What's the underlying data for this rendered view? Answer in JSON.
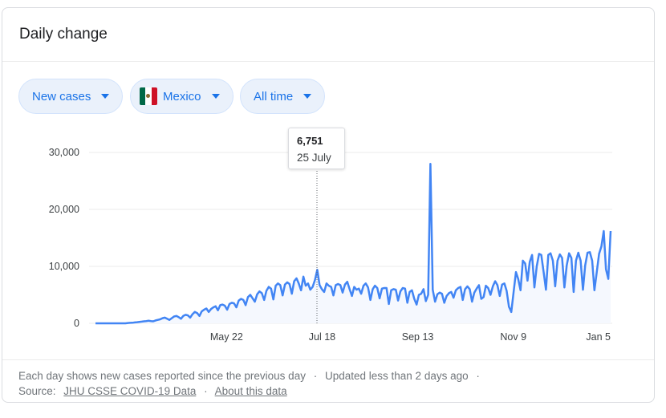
{
  "card": {
    "title": "Daily change"
  },
  "filters": {
    "metric": "New cases",
    "country": "Mexico",
    "range": "All time"
  },
  "tooltip": {
    "value": "6,751",
    "date": "25 July"
  },
  "colors": {
    "line": "#4285f4",
    "chip_text": "#1a73e8",
    "chip_bg": "#eaf1fb"
  },
  "footer": {
    "note": "Each day shows new cases reported since the previous day",
    "updated": "Updated less than 2 days ago",
    "source_label": "Source:",
    "source_link": "JHU CSSE COVID-19 Data",
    "about_link": "About this data"
  },
  "chart_data": {
    "type": "line",
    "x_start": "2020-03-01",
    "x_end": "2021-01-07",
    "x_ticks": [
      {
        "date": "2020-05-22",
        "label": "May 22"
      },
      {
        "date": "2020-07-18",
        "label": "Jul 18"
      },
      {
        "date": "2020-09-13",
        "label": "Sep 13"
      },
      {
        "date": "2020-11-09",
        "label": "Nov 9"
      },
      {
        "date": "2021-01-05",
        "label": "Jan 5"
      }
    ],
    "y_ticks": [
      {
        "value": 0,
        "label": "0"
      },
      {
        "value": 10000,
        "label": "10,000"
      },
      {
        "value": 20000,
        "label": "20,000"
      },
      {
        "value": 30000,
        "label": "30,000"
      }
    ],
    "ylim": [
      0,
      30000
    ],
    "hover": {
      "date": "2020-07-25",
      "value": 6751
    },
    "series": [
      {
        "values": [
          0,
          0,
          0,
          0,
          0,
          0,
          0,
          0,
          0,
          0,
          0,
          0,
          0,
          0,
          50,
          80,
          100,
          150,
          200,
          250,
          300,
          350,
          400,
          450,
          400,
          350,
          500,
          600,
          700,
          900,
          1000,
          800,
          600,
          900,
          1200,
          1300,
          1100,
          800,
          1300,
          1500,
          1400,
          1000,
          1600,
          2000,
          1800,
          1300,
          2100,
          2400,
          2600,
          2000,
          2500,
          2800,
          3000,
          2300,
          3200,
          3300,
          3100,
          2400,
          3400,
          3600,
          3500,
          2800,
          4000,
          4300,
          4100,
          3200,
          4600,
          5000,
          4400,
          3800,
          5100,
          5600,
          5300,
          4100,
          5700,
          6400,
          6100,
          4200,
          6600,
          7000,
          6700,
          4900,
          6800,
          7200,
          6900,
          5200,
          7400,
          7900,
          7000,
          5800,
          8200,
          6600,
          7000,
          5900,
          6400,
          7600,
          9400,
          6700,
          6000,
          5500,
          7000,
          6600,
          6400,
          4900,
          6700,
          6900,
          6700,
          5400,
          6800,
          7300,
          6000,
          4800,
          6400,
          5900,
          6100,
          5200,
          6600,
          7000,
          6300,
          4100,
          6000,
          6600,
          6200,
          4400,
          6100,
          6200,
          6200,
          3400,
          5800,
          6000,
          5900,
          4000,
          5600,
          6200,
          6100,
          3600,
          5500,
          5800,
          4300,
          3300,
          5000,
          5200,
          6000,
          3900,
          5000,
          28000,
          5900,
          3800,
          5100,
          5400,
          5200,
          3600,
          4800,
          5300,
          5500,
          4500,
          5800,
          6200,
          6400,
          4100,
          6000,
          6500,
          6000,
          3800,
          5400,
          6100,
          6700,
          4300,
          4600,
          6600,
          6200,
          5000,
          6500,
          7400,
          6700,
          4800,
          6800,
          7000,
          5700,
          2900,
          2000,
          5500,
          9000,
          7800,
          5800,
          11000,
          10500,
          7500,
          10800,
          12000,
          6300,
          10000,
          12200,
          12000,
          9000,
          5900,
          12000,
          12300,
          11000,
          6500,
          11000,
          12100,
          11500,
          6300,
          10200,
          12300,
          11500,
          5500,
          11000,
          12400,
          11000,
          5900,
          10200,
          12400,
          12500,
          11000,
          5800,
          9000,
          12200,
          13500,
          16200,
          9500,
          7800,
          16200
        ]
      }
    ]
  }
}
